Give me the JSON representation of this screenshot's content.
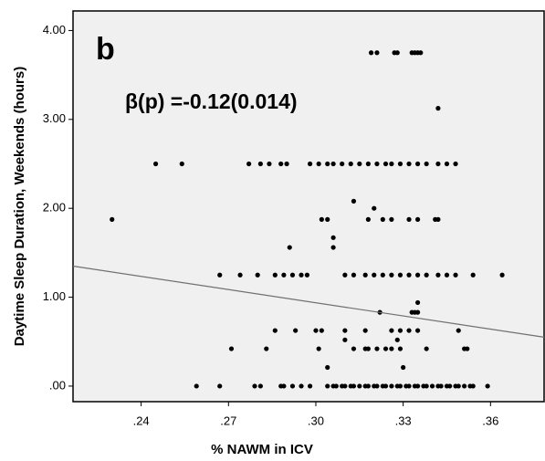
{
  "chart_data": {
    "type": "scatter",
    "annotations": [
      "b",
      "β(p) =-0.12(0.014)"
    ],
    "xlabel": "% NAWM in ICV",
    "ylabel": "Daytime Sleep  Duration, Weekends (hours)",
    "xlim": [
      0.2166,
      0.3784
    ],
    "ylim": [
      -0.175,
      4.22
    ],
    "xticks": [
      {
        "value": 0.24,
        "label": ".24"
      },
      {
        "value": 0.27,
        "label": ".27"
      },
      {
        "value": 0.3,
        "label": ".30"
      },
      {
        "value": 0.33,
        "label": ".33"
      },
      {
        "value": 0.36,
        "label": ".36"
      }
    ],
    "yticks": [
      {
        "value": 0,
        "label": ".00"
      },
      {
        "value": 1,
        "label": "1.00"
      },
      {
        "value": 2,
        "label": "2.00"
      },
      {
        "value": 3,
        "label": "3.00"
      },
      {
        "value": 4,
        "label": "4.00"
      }
    ],
    "color": "#000000",
    "background": "#f0f0f0",
    "fit_line": {
      "x": [
        0.2166,
        0.3784
      ],
      "y": [
        1.35,
        0.55
      ],
      "color": "#707070"
    },
    "x": [
      0.259,
      0.267,
      0.279,
      0.281,
      0.288,
      0.289,
      0.292,
      0.295,
      0.298,
      0.304,
      0.306,
      0.307,
      0.309,
      0.31,
      0.312,
      0.313,
      0.315,
      0.317,
      0.318,
      0.32,
      0.321,
      0.323,
      0.324,
      0.326,
      0.328,
      0.329,
      0.331,
      0.332,
      0.334,
      0.335,
      0.337,
      0.338,
      0.34,
      0.342,
      0.343,
      0.345,
      0.346,
      0.348,
      0.349,
      0.351,
      0.353,
      0.354,
      0.359,
      0.245,
      0.254,
      0.277,
      0.281,
      0.284,
      0.288,
      0.29,
      0.298,
      0.301,
      0.304,
      0.306,
      0.309,
      0.312,
      0.315,
      0.318,
      0.321,
      0.324,
      0.326,
      0.329,
      0.332,
      0.335,
      0.338,
      0.342,
      0.345,
      0.348,
      0.319,
      0.321,
      0.327,
      0.328,
      0.333,
      0.334,
      0.335,
      0.336,
      0.342,
      0.23,
      0.302,
      0.304,
      0.318,
      0.323,
      0.326,
      0.332,
      0.335,
      0.341,
      0.342,
      0.313,
      0.32,
      0.267,
      0.274,
      0.28,
      0.286,
      0.289,
      0.292,
      0.295,
      0.297,
      0.31,
      0.313,
      0.317,
      0.32,
      0.323,
      0.326,
      0.329,
      0.332,
      0.335,
      0.338,
      0.342,
      0.345,
      0.348,
      0.354,
      0.364,
      0.291,
      0.306,
      0.306,
      0.286,
      0.293,
      0.3,
      0.302,
      0.31,
      0.317,
      0.326,
      0.329,
      0.332,
      0.335,
      0.349,
      0.271,
      0.283,
      0.301,
      0.313,
      0.317,
      0.318,
      0.321,
      0.324,
      0.326,
      0.329,
      0.338,
      0.351,
      0.352,
      0.322,
      0.333,
      0.334,
      0.335,
      0.335,
      0.304,
      0.33,
      0.31,
      0.328
    ],
    "y": [
      0,
      0,
      0,
      0,
      0,
      0,
      0,
      0,
      0,
      0,
      0,
      0,
      0,
      0,
      0,
      0,
      0,
      0,
      0,
      0,
      0,
      0,
      0,
      0,
      0,
      0,
      0,
      0,
      0,
      0,
      0,
      0,
      0,
      0,
      0,
      0,
      0,
      0,
      0,
      0,
      0,
      0,
      0,
      2.5,
      2.5,
      2.5,
      2.5,
      2.5,
      2.5,
      2.5,
      2.5,
      2.5,
      2.5,
      2.5,
      2.5,
      2.5,
      2.5,
      2.5,
      2.5,
      2.5,
      2.5,
      2.5,
      2.5,
      2.5,
      2.5,
      2.5,
      2.5,
      2.5,
      3.75,
      3.75,
      3.75,
      3.75,
      3.75,
      3.75,
      3.75,
      3.75,
      3.125,
      1.875,
      1.875,
      1.875,
      1.875,
      1.875,
      1.875,
      1.875,
      1.875,
      1.875,
      1.875,
      2.08,
      2.0,
      1.25,
      1.25,
      1.25,
      1.25,
      1.25,
      1.25,
      1.25,
      1.25,
      1.25,
      1.25,
      1.25,
      1.25,
      1.25,
      1.25,
      1.25,
      1.25,
      1.25,
      1.25,
      1.25,
      1.25,
      1.25,
      1.25,
      1.25,
      1.56,
      1.56,
      1.67,
      0.625,
      0.625,
      0.625,
      0.625,
      0.625,
      0.625,
      0.625,
      0.625,
      0.625,
      0.625,
      0.625,
      0.42,
      0.42,
      0.42,
      0.42,
      0.42,
      0.42,
      0.42,
      0.42,
      0.42,
      0.42,
      0.42,
      0.42,
      0.42,
      0.83,
      0.83,
      0.83,
      0.83,
      0.94,
      0.21,
      0.21,
      0.52,
      0.52
    ]
  }
}
